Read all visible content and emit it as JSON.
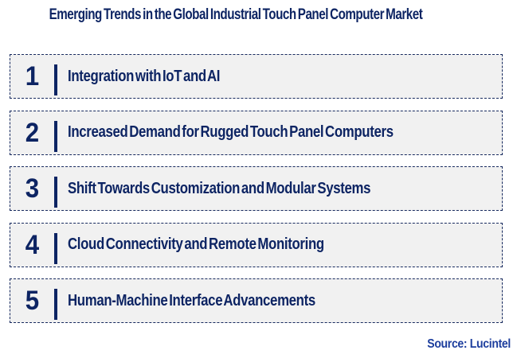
{
  "header": {
    "title": "Emerging Trends in the Global Industrial Touch Panel Computer Market"
  },
  "trends": [
    {
      "number": "1",
      "label": "Integration with IoT and AI"
    },
    {
      "number": "2",
      "label": "Increased Demand for Rugged Touch Panel Computers"
    },
    {
      "number": "3",
      "label": "Shift Towards Customization and Modular Systems"
    },
    {
      "number": "4",
      "label": "Cloud Connectivity and Remote Monitoring"
    },
    {
      "number": "5",
      "label": "Human-Machine Interface Advancements"
    }
  ],
  "footer": {
    "source": "Source: Lucintel"
  },
  "colors": {
    "navy_text": "#0d2463",
    "row_background": "#f1f1f1",
    "row_border": "#16295e",
    "source_blue": "#1e3f9e",
    "page_background": "#ffffff"
  }
}
